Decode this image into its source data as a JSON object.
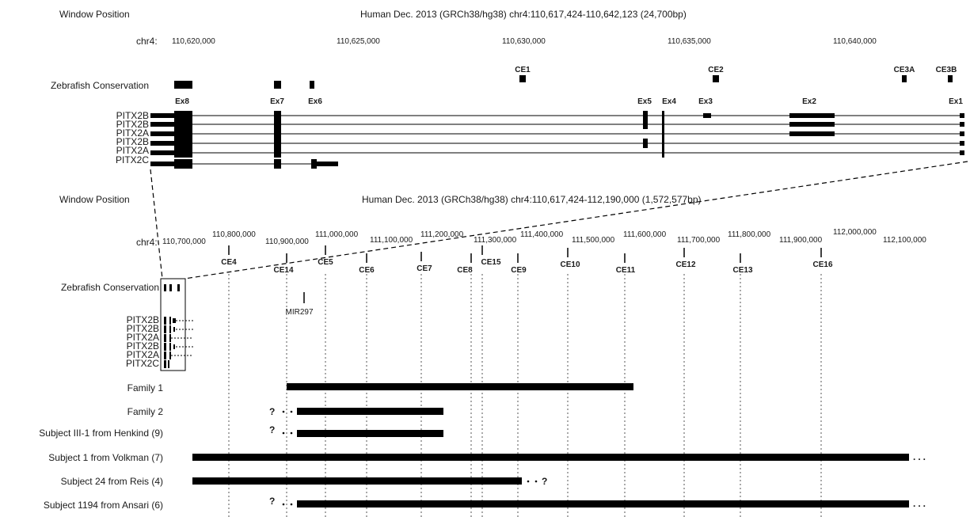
{
  "top": {
    "window_label": "Window Position",
    "window_title": "Human Dec. 2013 (GRCh38/hg38) chr4:110,617,424-110,642,123 (24,700bp)",
    "chr_label": "chr4:",
    "ticks": [
      "110,620,000",
      "110,625,000",
      "110,630,000",
      "110,635,000",
      "110,640,000"
    ],
    "conservation_label": "Zebrafish Conservation",
    "ce_labels": [
      "CE1",
      "CE2",
      "CE3A",
      "CE3B"
    ],
    "exon_labels": [
      "Ex8",
      "Ex7",
      "Ex6",
      "Ex5",
      "Ex4",
      "Ex3",
      "Ex2",
      "Ex1"
    ],
    "isoforms": [
      "PITX2B",
      "PITX2B",
      "PITX2A",
      "PITX2B",
      "PITX2A",
      "PITX2C"
    ]
  },
  "bottom": {
    "window_label": "Window Position",
    "window_title": "Human Dec. 2013 (GRCh38/hg38) chr4:110,617,424-112,190,000 (1,572,577bp)",
    "chr_label": "chr4:",
    "ticks": [
      "110,700,000",
      "110,800,000",
      "110,900,000",
      "111,000,000",
      "111,100,000",
      "111,200,000",
      "111,300,000",
      "111,400,000",
      "111,500,000",
      "111,600,000",
      "111,700,000",
      "111,800,000",
      "111,900,000",
      "112,000,000",
      "112,100,000"
    ],
    "conservation_label": "Zebrafish Conservation",
    "ce_labels": [
      "CE4",
      "CE14",
      "CE5",
      "CE6",
      "CE7",
      "CE8",
      "CE15",
      "CE9",
      "CE10",
      "CE11",
      "CE12",
      "CE13",
      "CE16"
    ],
    "mir_label": "MIR297",
    "isoforms": [
      "PITX2B",
      "PITX2B",
      "PITX2A",
      "PITX2B",
      "PITX2A",
      "PITX2C"
    ]
  },
  "deletions": {
    "rows": [
      {
        "label": "Family 1",
        "prefix": "",
        "suffix": ""
      },
      {
        "label": "Family 2",
        "prefix": "?",
        "suffix": ""
      },
      {
        "label": "Subject III-1 from Henkind (9)",
        "prefix": "?",
        "suffix": ""
      },
      {
        "label": "Subject 1 from Volkman (7)",
        "prefix": "",
        "suffix": "..."
      },
      {
        "label": "Subject 24 from Reis (4)",
        "prefix": "",
        "suffix": "?"
      },
      {
        "label": "Subject 1194 from Ansari (6)",
        "prefix": "?",
        "suffix": "..."
      }
    ]
  }
}
